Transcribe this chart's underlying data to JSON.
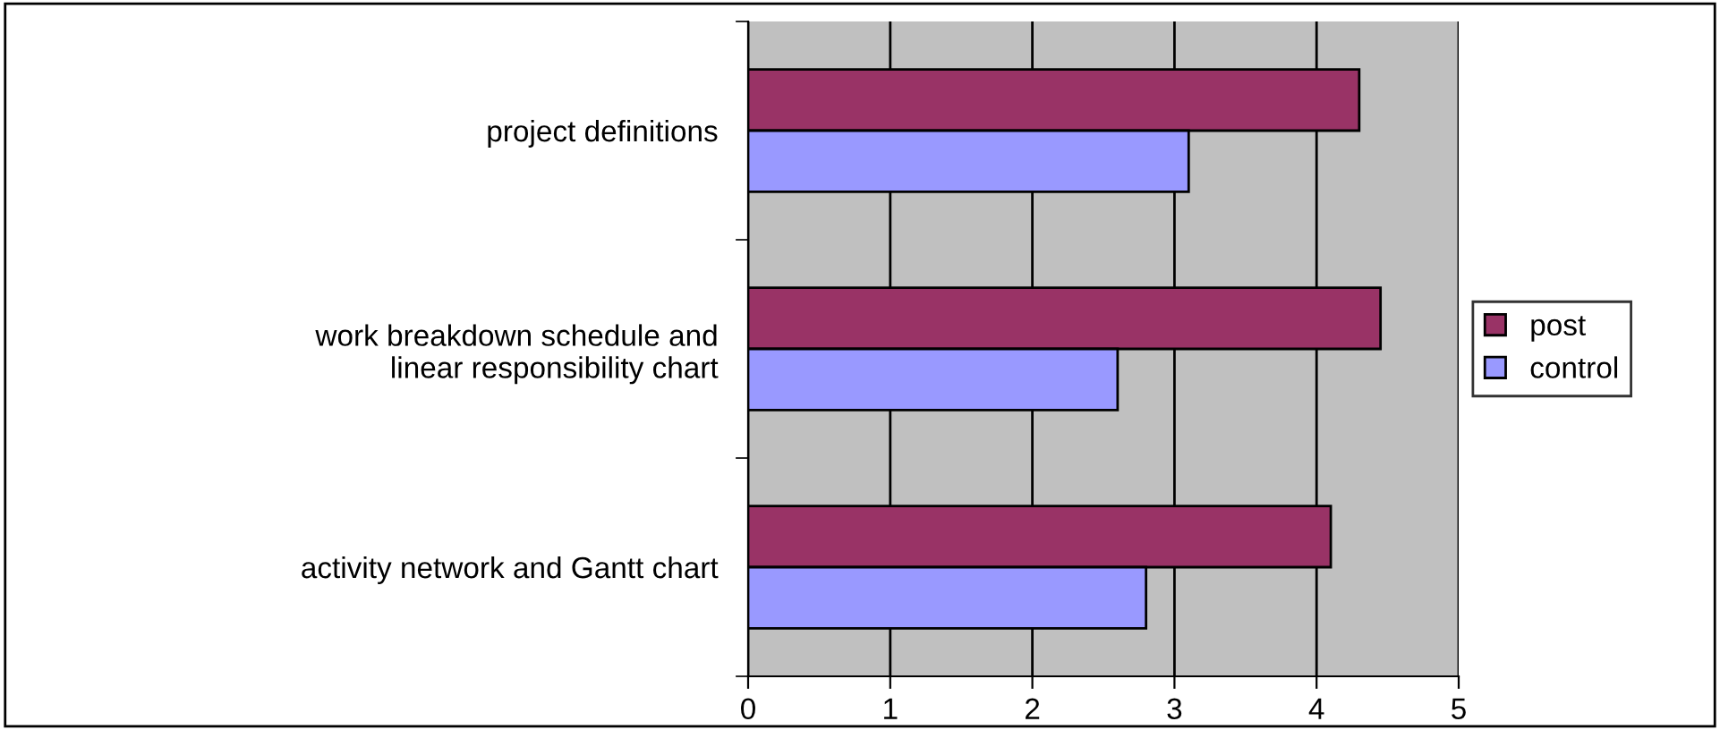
{
  "chart_data": {
    "type": "bar",
    "orientation": "horizontal",
    "categories": [
      "project definitions",
      "work breakdown schedule and\nlinear responsibility chart",
      "activity network and Gantt chart"
    ],
    "series": [
      {
        "name": "post",
        "color": "#993366",
        "values": [
          4.3,
          4.45,
          4.1
        ]
      },
      {
        "name": "control",
        "color": "#9999ff",
        "values": [
          3.1,
          2.6,
          2.8
        ]
      }
    ],
    "xlim": [
      0,
      5
    ],
    "xticks": [
      0,
      1,
      2,
      3,
      4,
      5
    ],
    "grid": "x",
    "legend": "right"
  }
}
